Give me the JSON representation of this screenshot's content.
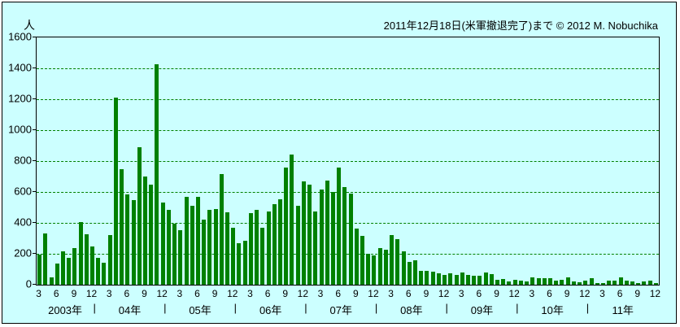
{
  "title": "2011年12月18日(米軍撤退完了)まで © 2012 M. Nobuchika",
  "chart_data": {
    "type": "bar",
    "unit_label": "人",
    "ylim": [
      0,
      1600
    ],
    "ytick_interval": 200,
    "yticks": [
      1600,
      1400,
      1200,
      1000,
      800,
      600,
      400,
      200,
      0
    ],
    "month_tick_labels": [
      3,
      6,
      9,
      12
    ],
    "year_separator": "|",
    "grid": "dashed-horizontal",
    "bar_color": "#008000",
    "background_color": "#CCFFFF",
    "gridline_color": "#008000",
    "years": [
      {
        "label": "2003年",
        "first_month": 3,
        "values": [
          195,
          330,
          50,
          135,
          215,
          175,
          235,
          405,
          325,
          250
        ]
      },
      {
        "label": "04年",
        "first_month": 1,
        "values": [
          175,
          140,
          320,
          1210,
          750,
          585,
          545,
          890,
          700,
          645,
          1425,
          530
        ]
      },
      {
        "label": "05年",
        "first_month": 1,
        "values": [
          485,
          395,
          355,
          570,
          510,
          570,
          420,
          485,
          490,
          715,
          470,
          370
        ]
      },
      {
        "label": "06年",
        "first_month": 1,
        "values": [
          270,
          285,
          465,
          485,
          370,
          475,
          520,
          555,
          760,
          840,
          510,
          670
        ]
      },
      {
        "label": "07年",
        "first_month": 1,
        "values": [
          650,
          475,
          615,
          675,
          600,
          760,
          630,
          590,
          365,
          315,
          200,
          190
        ]
      },
      {
        "label": "08年",
        "first_month": 1,
        "values": [
          235,
          225,
          320,
          295,
          215,
          145,
          160,
          90,
          90,
          85,
          75,
          65
        ]
      },
      {
        "label": "09年",
        "first_month": 1,
        "values": [
          75,
          65,
          80,
          65,
          60,
          60,
          80,
          70,
          30,
          35,
          20,
          30
        ]
      },
      {
        "label": "10年",
        "first_month": 1,
        "values": [
          25,
          20,
          45,
          40,
          40,
          40,
          25,
          30,
          45,
          20,
          15,
          25
        ]
      },
      {
        "label": "11年",
        "first_month": 1,
        "values": [
          40,
          10,
          10,
          25,
          25,
          45,
          25,
          20,
          10,
          20,
          25,
          10
        ]
      }
    ]
  }
}
